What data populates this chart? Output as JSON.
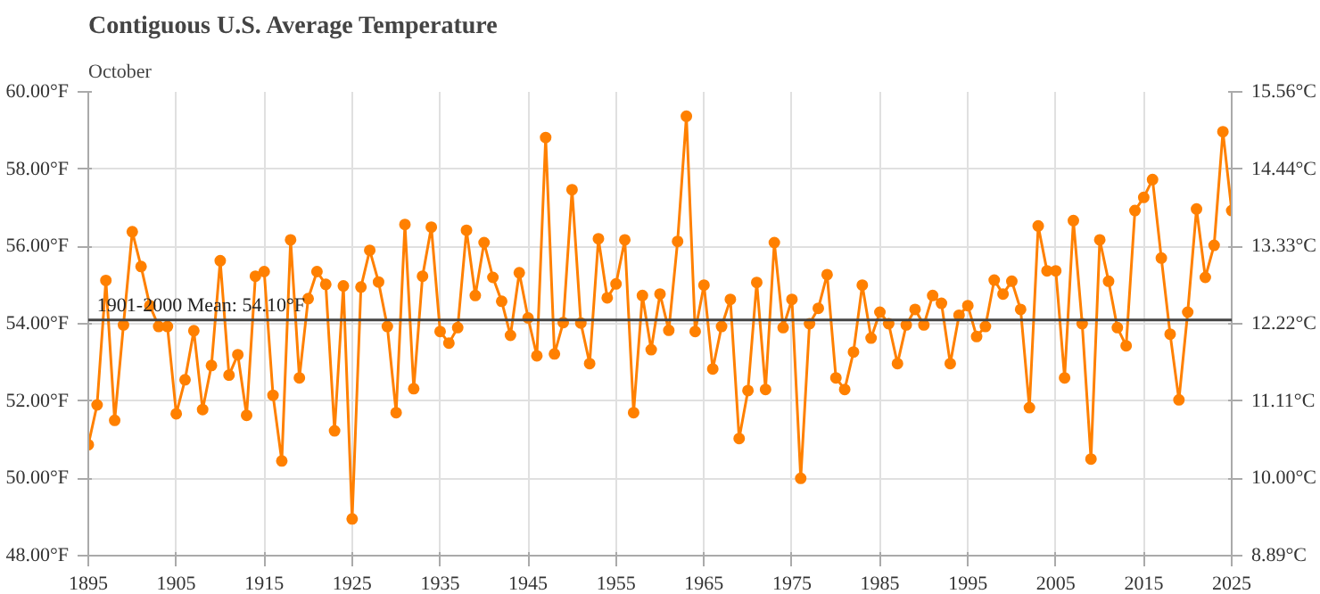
{
  "chart_data": {
    "type": "line",
    "title": "Contiguous U.S. Average Temperature",
    "subtitle": "October",
    "x": [
      1895,
      1896,
      1897,
      1898,
      1899,
      1900,
      1901,
      1902,
      1903,
      1904,
      1905,
      1906,
      1907,
      1908,
      1909,
      1910,
      1911,
      1912,
      1913,
      1914,
      1915,
      1916,
      1917,
      1918,
      1919,
      1920,
      1921,
      1922,
      1923,
      1924,
      1925,
      1926,
      1927,
      1928,
      1929,
      1930,
      1931,
      1932,
      1933,
      1934,
      1935,
      1936,
      1937,
      1938,
      1939,
      1940,
      1941,
      1942,
      1943,
      1944,
      1945,
      1946,
      1947,
      1948,
      1949,
      1950,
      1951,
      1952,
      1953,
      1954,
      1955,
      1956,
      1957,
      1958,
      1959,
      1960,
      1961,
      1962,
      1963,
      1964,
      1965,
      1966,
      1967,
      1968,
      1969,
      1970,
      1971,
      1972,
      1973,
      1974,
      1975,
      1976,
      1977,
      1978,
      1979,
      1980,
      1981,
      1982,
      1983,
      1984,
      1985,
      1986,
      1987,
      1988,
      1989,
      1990,
      1991,
      1992,
      1993,
      1994,
      1995,
      1996,
      1997,
      1998,
      1999,
      2000,
      2001,
      2002,
      2003,
      2004,
      2005,
      2006,
      2007,
      2008,
      2009,
      2010,
      2011,
      2012,
      2013,
      2014,
      2015,
      2016,
      2017,
      2018,
      2019,
      2020,
      2021,
      2022,
      2023,
      2024,
      2025
    ],
    "series": [
      {
        "color": "#ff8000",
        "values": [
          50.87,
          51.9,
          55.12,
          51.5,
          53.97,
          56.38,
          55.48,
          54.47,
          53.93,
          53.93,
          51.67,
          52.55,
          53.82,
          51.78,
          52.92,
          55.63,
          52.67,
          53.2,
          51.63,
          55.23,
          55.35,
          52.15,
          50.45,
          56.17,
          52.6,
          54.65,
          55.35,
          55.02,
          51.23,
          54.98,
          48.95,
          54.95,
          55.9,
          55.08,
          53.93,
          51.7,
          56.57,
          52.32,
          55.23,
          56.5,
          53.8,
          53.5,
          53.9,
          56.42,
          54.73,
          56.1,
          55.2,
          54.58,
          53.7,
          55.32,
          54.15,
          53.17,
          58.82,
          53.22,
          54.03,
          57.47,
          54.02,
          52.97,
          56.2,
          54.67,
          55.03,
          56.17,
          51.7,
          54.73,
          53.33,
          54.77,
          53.83,
          56.13,
          59.37,
          53.8,
          55.0,
          52.83,
          53.93,
          54.63,
          51.03,
          52.27,
          55.07,
          52.3,
          56.1,
          53.9,
          54.63,
          50.0,
          54.0,
          54.4,
          55.27,
          52.6,
          52.3,
          53.27,
          55.0,
          53.63,
          54.3,
          54.0,
          52.97,
          53.97,
          54.37,
          53.97,
          54.73,
          54.53,
          52.97,
          54.22,
          54.47,
          53.67,
          53.93,
          55.13,
          54.77,
          55.1,
          54.37,
          51.83,
          56.53,
          55.37,
          55.37,
          52.6,
          56.67,
          54.0,
          50.5,
          56.17,
          55.1,
          53.9,
          53.43,
          56.93,
          57.27,
          57.73,
          55.7,
          53.73,
          52.03,
          54.3,
          56.97,
          55.2,
          56.03,
          58.97,
          56.93
        ]
      }
    ],
    "xlim": [
      1895,
      2025
    ],
    "xticks": [
      1895,
      1905,
      1915,
      1925,
      1935,
      1945,
      1955,
      1965,
      1975,
      1985,
      1995,
      2005,
      2015,
      2025
    ],
    "ylim": [
      48,
      60
    ],
    "yticks": [
      {
        "value": 48,
        "label": "48.00°F"
      },
      {
        "value": 50,
        "label": "50.00°F"
      },
      {
        "value": 52,
        "label": "52.00°F"
      },
      {
        "value": 54,
        "label": "54.00°F"
      },
      {
        "value": 56,
        "label": "56.00°F"
      },
      {
        "value": 58,
        "label": "58.00°F"
      },
      {
        "value": 60,
        "label": "60.00°F"
      }
    ],
    "y2lim": [
      8.889,
      15.556
    ],
    "y2ticks": [
      {
        "value": 8.889,
        "label": "8.89°C"
      },
      {
        "value": 10.0,
        "label": "10.00°C"
      },
      {
        "value": 11.111,
        "label": "11.11°C"
      },
      {
        "value": 12.222,
        "label": "12.22°C"
      },
      {
        "value": 13.333,
        "label": "13.33°C"
      },
      {
        "value": 14.444,
        "label": "14.44°C"
      },
      {
        "value": 15.556,
        "label": "15.56°C"
      }
    ],
    "ref_lines": [
      {
        "axis": "y",
        "value": 54.1,
        "label": "1901-2000 Mean: 54.10°F",
        "color": "#444444"
      }
    ],
    "grid": true,
    "marker": "circle",
    "line_style": "solid"
  }
}
